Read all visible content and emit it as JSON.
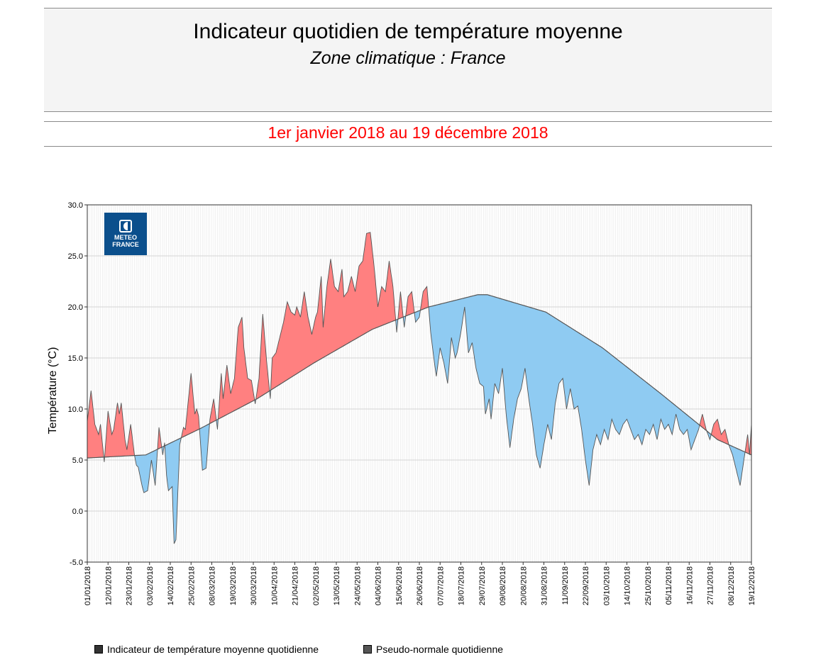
{
  "header": {
    "title": "Indicateur quotidien de température moyenne",
    "subtitle": "Zone climatique : France",
    "period": "1er janvier 2018 au 19 décembre 2018"
  },
  "logo": {
    "line1": "METEO",
    "line2": "FRANCE"
  },
  "colors": {
    "above_normal_fill": "#ff8080",
    "below_normal_fill": "#8fcbf2",
    "line": "#555555",
    "period_text": "#ff0000"
  },
  "legend": [
    {
      "label": "Indicateur de température moyenne quotidienne",
      "color": "#333333"
    },
    {
      "label": "Pseudo-normale quotidienne",
      "color": "#555555"
    }
  ],
  "chart_data": {
    "type": "area",
    "ylabel": "Température (°C)",
    "ylim": [
      -5,
      30
    ],
    "y_ticks": [
      -5,
      0,
      5,
      10,
      15,
      20,
      25,
      30
    ],
    "y_tick_labels": [
      "-5.0",
      "0.0",
      "5.0",
      "10.0",
      "15.0",
      "20.0",
      "25.0",
      "30.0"
    ],
    "x_tick_labels": [
      "01/01/2018",
      "12/01/2018",
      "23/01/2018",
      "03/02/2018",
      "14/02/2018",
      "25/02/2018",
      "08/03/2018",
      "19/03/2018",
      "30/03/2018",
      "10/04/2018",
      "21/04/2018",
      "02/05/2018",
      "13/05/2018",
      "24/05/2018",
      "04/06/2018",
      "15/06/2018",
      "26/06/2018",
      "07/07/2018",
      "18/07/2018",
      "29/07/2018",
      "09/08/2018",
      "20/08/2018",
      "31/08/2018",
      "11/09/2018",
      "22/09/2018",
      "03/10/2018",
      "14/10/2018",
      "25/10/2018",
      "05/11/2018",
      "16/11/2018",
      "27/11/2018",
      "08/12/2018",
      "19/12/2018"
    ],
    "grid": true,
    "legend_position": "bottom",
    "series": [
      {
        "name": "Indicateur de température moyenne quotidienne",
        "points": [
          [
            "01/01/2018",
            8.8
          ],
          [
            "03/01/2018",
            11.8
          ],
          [
            "05/01/2018",
            8.5
          ],
          [
            "07/01/2018",
            7.5
          ],
          [
            "08/01/2018",
            8.5
          ],
          [
            "10/01/2018",
            4.8
          ],
          [
            "12/01/2018",
            9.8
          ],
          [
            "14/01/2018",
            7.5
          ],
          [
            "15/01/2018",
            8.0
          ],
          [
            "17/01/2018",
            10.6
          ],
          [
            "18/01/2018",
            9.5
          ],
          [
            "19/01/2018",
            10.6
          ],
          [
            "21/01/2018",
            7.0
          ],
          [
            "22/01/2018",
            6.0
          ],
          [
            "24/01/2018",
            8.5
          ],
          [
            "26/01/2018",
            5.5
          ],
          [
            "27/01/2018",
            4.5
          ],
          [
            "28/01/2018",
            4.3
          ],
          [
            "30/01/2018",
            2.5
          ],
          [
            "31/01/2018",
            1.8
          ],
          [
            "02/02/2018",
            2.0
          ],
          [
            "04/02/2018",
            5.0
          ],
          [
            "06/02/2018",
            2.5
          ],
          [
            "08/02/2018",
            8.2
          ],
          [
            "10/02/2018",
            5.5
          ],
          [
            "11/02/2018",
            6.7
          ],
          [
            "12/02/2018",
            3.5
          ],
          [
            "13/02/2018",
            2.0
          ],
          [
            "15/02/2018",
            2.4
          ],
          [
            "16/02/2018",
            -3.2
          ],
          [
            "17/02/2018",
            -2.8
          ],
          [
            "19/02/2018",
            6.5
          ],
          [
            "21/02/2018",
            8.2
          ],
          [
            "22/02/2018",
            8.0
          ],
          [
            "25/02/2018",
            13.5
          ],
          [
            "27/02/2018",
            9.5
          ],
          [
            "28/02/2018",
            10.0
          ],
          [
            "01/03/2018",
            9.3
          ],
          [
            "03/03/2018",
            4.0
          ],
          [
            "05/03/2018",
            4.2
          ],
          [
            "07/03/2018",
            9.0
          ],
          [
            "09/03/2018",
            11.0
          ],
          [
            "11/03/2018",
            8.0
          ],
          [
            "13/03/2018",
            13.5
          ],
          [
            "14/03/2018",
            11.0
          ],
          [
            "16/03/2018",
            14.3
          ],
          [
            "18/03/2018",
            11.5
          ],
          [
            "20/03/2018",
            13.0
          ],
          [
            "22/03/2018",
            18.0
          ],
          [
            "24/03/2018",
            19.0
          ],
          [
            "25/03/2018",
            16.0
          ],
          [
            "27/03/2018",
            13.0
          ],
          [
            "29/03/2018",
            12.8
          ],
          [
            "31/03/2018",
            10.5
          ],
          [
            "02/04/2018",
            13.0
          ],
          [
            "04/04/2018",
            19.3
          ],
          [
            "06/04/2018",
            14.8
          ],
          [
            "08/04/2018",
            11.0
          ],
          [
            "09/04/2018",
            15.0
          ],
          [
            "11/04/2018",
            15.5
          ],
          [
            "13/04/2018",
            17.0
          ],
          [
            "15/04/2018",
            18.5
          ],
          [
            "17/04/2018",
            20.5
          ],
          [
            "19/04/2018",
            19.5
          ],
          [
            "21/04/2018",
            19.2
          ],
          [
            "22/04/2018",
            20.0
          ],
          [
            "24/04/2018",
            19.0
          ],
          [
            "26/04/2018",
            21.5
          ],
          [
            "28/04/2018",
            19.0
          ],
          [
            "30/04/2018",
            17.3
          ],
          [
            "02/05/2018",
            19.0
          ],
          [
            "03/05/2018",
            19.5
          ],
          [
            "05/05/2018",
            23.0
          ],
          [
            "06/05/2018",
            18.0
          ],
          [
            "08/05/2018",
            22.0
          ],
          [
            "10/05/2018",
            24.7
          ],
          [
            "12/05/2018",
            22.0
          ],
          [
            "14/05/2018",
            21.5
          ],
          [
            "16/05/2018",
            23.7
          ],
          [
            "17/05/2018",
            21.0
          ],
          [
            "19/05/2018",
            21.5
          ],
          [
            "21/05/2018",
            23.0
          ],
          [
            "23/05/2018",
            21.5
          ],
          [
            "25/05/2018",
            24.0
          ],
          [
            "27/05/2018",
            24.5
          ],
          [
            "29/05/2018",
            27.2
          ],
          [
            "31/05/2018",
            27.3
          ],
          [
            "02/06/2018",
            24.0
          ],
          [
            "04/06/2018",
            20.0
          ],
          [
            "06/06/2018",
            22.0
          ],
          [
            "08/06/2018",
            21.5
          ],
          [
            "10/06/2018",
            24.5
          ],
          [
            "12/06/2018",
            22.0
          ],
          [
            "14/06/2018",
            17.5
          ],
          [
            "16/06/2018",
            21.5
          ],
          [
            "18/06/2018",
            18.0
          ],
          [
            "20/06/2018",
            21.0
          ],
          [
            "22/06/2018",
            21.5
          ],
          [
            "24/06/2018",
            18.5
          ],
          [
            "26/06/2018",
            19.0
          ],
          [
            "28/06/2018",
            21.5
          ],
          [
            "30/06/2018",
            22.0
          ],
          [
            "02/07/2018",
            17.5
          ],
          [
            "04/07/2018",
            14.5
          ],
          [
            "05/07/2018",
            13.2
          ],
          [
            "07/07/2018",
            16.0
          ],
          [
            "09/07/2018",
            14.5
          ],
          [
            "11/07/2018",
            12.5
          ],
          [
            "13/07/2018",
            17.0
          ],
          [
            "15/07/2018",
            15.0
          ],
          [
            "16/07/2018",
            15.5
          ],
          [
            "18/07/2018",
            17.5
          ],
          [
            "20/07/2018",
            20.0
          ],
          [
            "22/07/2018",
            15.5
          ],
          [
            "24/07/2018",
            16.5
          ],
          [
            "26/07/2018",
            14.0
          ],
          [
            "28/07/2018",
            12.5
          ],
          [
            "30/07/2018",
            12.2
          ],
          [
            "31/07/2018",
            9.5
          ],
          [
            "02/08/2018",
            11.0
          ],
          [
            "03/08/2018",
            9.0
          ],
          [
            "05/08/2018",
            12.5
          ],
          [
            "07/08/2018",
            11.5
          ],
          [
            "09/08/2018",
            14.0
          ],
          [
            "11/08/2018",
            9.5
          ],
          [
            "13/08/2018",
            6.2
          ],
          [
            "15/08/2018",
            9.0
          ],
          [
            "17/08/2018",
            11.0
          ],
          [
            "19/08/2018",
            12.0
          ],
          [
            "21/08/2018",
            14.0
          ],
          [
            "23/08/2018",
            11.0
          ],
          [
            "25/08/2018",
            8.5
          ],
          [
            "27/08/2018",
            5.5
          ],
          [
            "29/08/2018",
            4.2
          ],
          [
            "31/08/2018",
            6.5
          ],
          [
            "02/09/2018",
            8.5
          ],
          [
            "04/09/2018",
            7.0
          ],
          [
            "06/09/2018",
            10.5
          ],
          [
            "08/09/2018",
            12.5
          ],
          [
            "10/09/2018",
            13.0
          ],
          [
            "12/09/2018",
            10.0
          ],
          [
            "14/09/2018",
            12.0
          ],
          [
            "16/09/2018",
            10.0
          ],
          [
            "18/09/2018",
            10.3
          ],
          [
            "20/09/2018",
            8.0
          ],
          [
            "22/09/2018",
            5.0
          ],
          [
            "24/09/2018",
            2.5
          ],
          [
            "26/09/2018",
            6.0
          ],
          [
            "28/09/2018",
            7.5
          ],
          [
            "30/09/2018",
            6.5
          ],
          [
            "02/10/2018",
            8.0
          ],
          [
            "04/10/2018",
            7.0
          ],
          [
            "06/10/2018",
            9.0
          ],
          [
            "08/10/2018",
            8.0
          ],
          [
            "10/10/2018",
            7.5
          ],
          [
            "12/10/2018",
            8.5
          ],
          [
            "14/10/2018",
            9.0
          ],
          [
            "16/10/2018",
            8.0
          ],
          [
            "18/10/2018",
            7.0
          ],
          [
            "20/10/2018",
            7.5
          ],
          [
            "22/10/2018",
            6.5
          ],
          [
            "24/10/2018",
            8.0
          ],
          [
            "26/10/2018",
            7.5
          ],
          [
            "28/10/2018",
            8.5
          ],
          [
            "30/10/2018",
            7.0
          ],
          [
            "01/11/2018",
            9.0
          ],
          [
            "03/11/2018",
            8.0
          ],
          [
            "05/11/2018",
            8.5
          ],
          [
            "07/11/2018",
            7.5
          ],
          [
            "09/11/2018",
            9.5
          ],
          [
            "11/11/2018",
            8.0
          ],
          [
            "13/11/2018",
            7.5
          ],
          [
            "15/11/2018",
            8.0
          ],
          [
            "17/11/2018",
            6.0
          ],
          [
            "19/11/2018",
            7.0
          ],
          [
            "21/11/2018",
            8.0
          ],
          [
            "23/11/2018",
            9.5
          ],
          [
            "25/11/2018",
            8.0
          ],
          [
            "27/11/2018",
            7.0
          ],
          [
            "29/11/2018",
            8.5
          ],
          [
            "01/12/2018",
            9.0
          ],
          [
            "03/12/2018",
            7.5
          ],
          [
            "05/12/2018",
            8.0
          ],
          [
            "07/12/2018",
            6.5
          ],
          [
            "09/12/2018",
            5.5
          ],
          [
            "11/12/2018",
            4.0
          ],
          [
            "13/12/2018",
            2.5
          ],
          [
            "15/12/2018",
            5.0
          ],
          [
            "17/12/2018",
            7.5
          ],
          [
            "18/12/2018",
            5.5
          ],
          [
            "19/12/2018",
            8.5
          ]
        ]
      },
      {
        "name": "Pseudo-normale quotidienne",
        "points": [
          [
            "01/01/2018",
            5.2
          ],
          [
            "01/02/2018",
            5.5
          ],
          [
            "01/03/2018",
            8.0
          ],
          [
            "01/04/2018",
            11.0
          ],
          [
            "01/05/2018",
            14.5
          ],
          [
            "01/06/2018",
            17.8
          ],
          [
            "01/07/2018",
            20.0
          ],
          [
            "27/07/2018",
            21.2
          ],
          [
            "01/08/2018",
            21.2
          ],
          [
            "01/09/2018",
            19.5
          ],
          [
            "01/10/2018",
            16.0
          ],
          [
            "01/11/2018",
            11.5
          ],
          [
            "01/12/2018",
            7.0
          ],
          [
            "19/12/2018",
            5.5
          ]
        ]
      }
    ]
  }
}
